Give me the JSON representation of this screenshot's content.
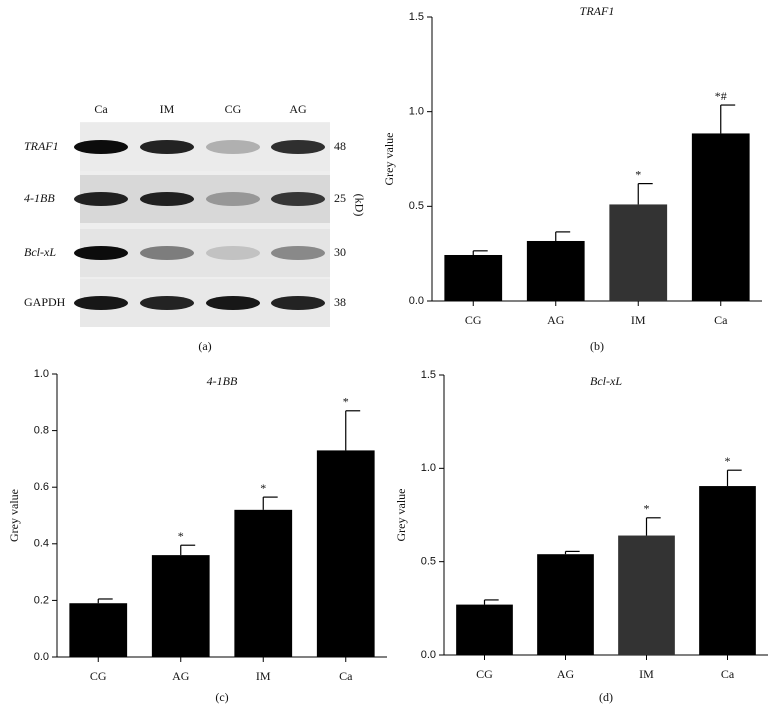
{
  "blot": {
    "caption": "(a)",
    "lanes": [
      "Ca",
      "IM",
      "CG",
      "AG"
    ],
    "unit": "(kD)",
    "rows": [
      {
        "label": "TRAF1",
        "kd": 48
      },
      {
        "label": "4-1BB",
        "kd": 25
      },
      {
        "label": "Bcl-xL",
        "kd": 30
      },
      {
        "label": "GAPDH",
        "kd": 38
      }
    ]
  },
  "chart_data": [
    {
      "type": "bar",
      "title": "TRAF1",
      "caption": "(b)",
      "y_label": "Grey value",
      "categories": [
        "CG",
        "AG",
        "IM",
        "Ca"
      ],
      "values": [
        0.243,
        0.317,
        0.51,
        0.885
      ],
      "errors": [
        0.022,
        0.048,
        0.11,
        0.15
      ],
      "annotations": [
        null,
        null,
        "*",
        "*#"
      ],
      "colors": [
        "#000000",
        "#000000",
        "#333333",
        "#000000"
      ],
      "ylim": [
        0,
        1.5
      ],
      "yticks": [
        {
          "value": 0,
          "label": "0.0"
        },
        0.5,
        {
          "value": 1,
          "label": "1.0"
        },
        1.5
      ],
      "grid": false
    },
    {
      "type": "bar",
      "title": "4-1BB",
      "caption": "(c)",
      "y_label": "Grey value",
      "categories": [
        "CG",
        "AG",
        "IM",
        "Ca"
      ],
      "values": [
        0.19,
        0.36,
        0.52,
        0.73
      ],
      "errors": [
        0.015,
        0.035,
        0.045,
        0.14
      ],
      "annotations": [
        null,
        "*",
        "*",
        "*"
      ],
      "colors": [
        "#000000",
        "#000000",
        "#000000",
        "#000000"
      ],
      "ylim": [
        0,
        1.0
      ],
      "yticks": [
        {
          "value": 0,
          "label": "0.0"
        },
        0.2,
        0.4,
        0.6,
        0.8,
        {
          "value": 1,
          "label": "1.0"
        }
      ],
      "grid": false
    },
    {
      "type": "bar",
      "title": "Bcl-xL",
      "caption": "(d)",
      "y_label": "Grey value",
      "categories": [
        "CG",
        "AG",
        "IM",
        "Ca"
      ],
      "values": [
        0.27,
        0.54,
        0.64,
        0.905
      ],
      "errors": [
        0.025,
        0.015,
        0.095,
        0.085
      ],
      "annotations": [
        null,
        null,
        "*",
        "*"
      ],
      "colors": [
        "#000000",
        "#000000",
        "#333333",
        "#000000"
      ],
      "ylim": [
        0,
        1.5
      ],
      "yticks": [
        {
          "value": 0,
          "label": "0.0"
        },
        0.5,
        {
          "value": 1,
          "label": "1.0"
        },
        1.5
      ],
      "grid": false
    }
  ]
}
